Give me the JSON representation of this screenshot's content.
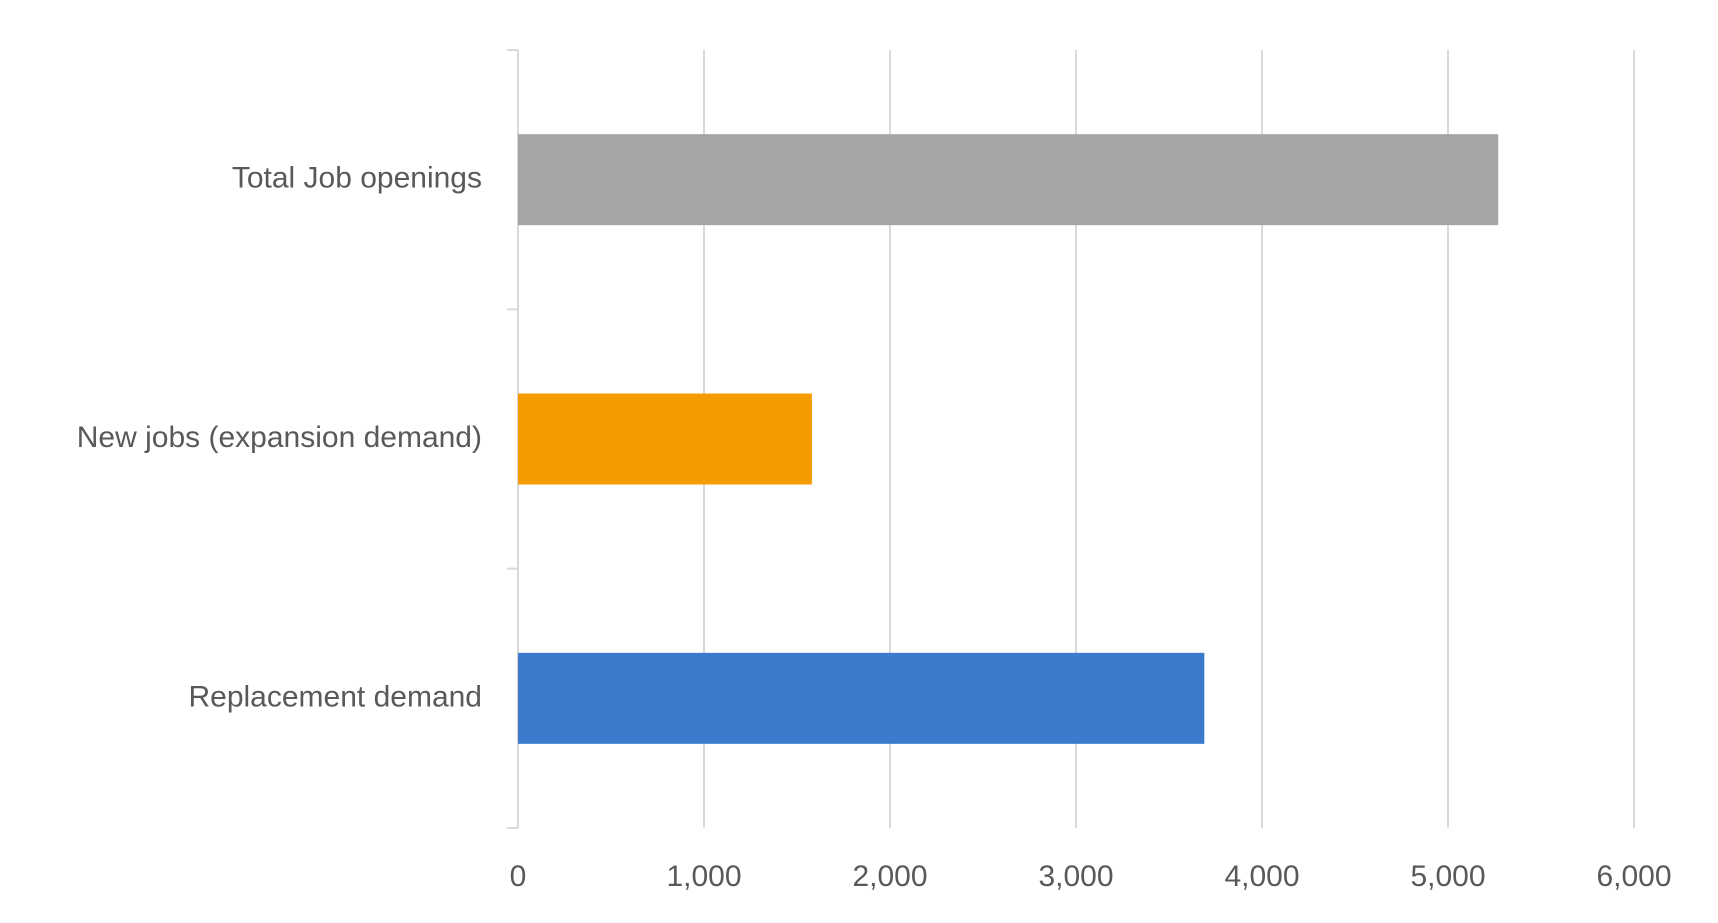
{
  "chart_data": {
    "type": "bar",
    "orientation": "horizontal",
    "categories": [
      "Total Job openings",
      "New jobs (expansion demand)",
      "Replacement demand"
    ],
    "values": [
      5270,
      1580,
      3690
    ],
    "colors": [
      "#a5a5a5",
      "#f59b00",
      "#3c7acd"
    ],
    "xlim": [
      0,
      6000
    ],
    "xticks": [
      0,
      {
        "value": 1000,
        "label": "1,000"
      },
      {
        "value": 2000,
        "label": "2,000"
      },
      {
        "value": 3000,
        "label": "3,000"
      },
      {
        "value": 4000,
        "label": "4,000"
      },
      {
        "value": 5000,
        "label": "5,000"
      },
      {
        "value": 6000,
        "label": "6,000"
      }
    ],
    "grid": true
  }
}
